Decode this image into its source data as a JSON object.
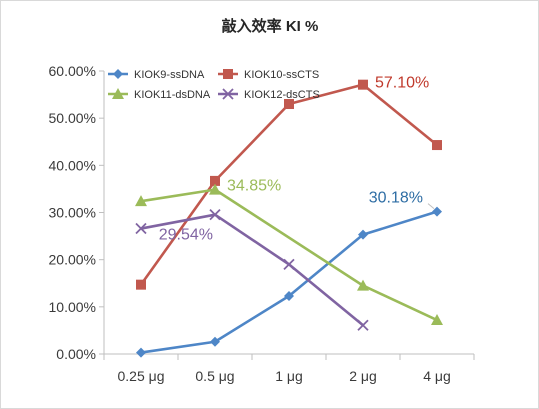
{
  "chart_data": {
    "type": "line",
    "title": "敲入效率 KI %",
    "xlabel": "",
    "ylabel": "",
    "categories": [
      "0.25 μg",
      "0.5 μg",
      "1 μg",
      "2 μg",
      "4 μg"
    ],
    "y_ticks": [
      "0.00%",
      "10.00%",
      "20.00%",
      "30.00%",
      "40.00%",
      "50.00%",
      "60.00%"
    ],
    "ylim": [
      0,
      60
    ],
    "grid": false,
    "legend_position": "top",
    "series": [
      {
        "name": "KIOK9-ssDNA",
        "color": "#4e86c7",
        "marker": "diamond",
        "values": [
          0.3,
          2.6,
          12.3,
          25.3,
          30.18
        ]
      },
      {
        "name": "KIOK10-ssCTS",
        "color": "#c1584e",
        "marker": "square",
        "values": [
          14.7,
          36.7,
          53.0,
          57.1,
          44.3
        ]
      },
      {
        "name": "KIOK11-dsDNA",
        "color": "#9bbb59",
        "marker": "triangle",
        "values": [
          32.4,
          34.85,
          null,
          14.5,
          7.2
        ]
      },
      {
        "name": "KIOK12-dsCTS",
        "color": "#8064a2",
        "marker": "x",
        "values": [
          26.6,
          29.54,
          19.0,
          6.1,
          null
        ]
      }
    ],
    "annotations": [
      {
        "text": "57.10%",
        "series": 1,
        "index": 3,
        "color": "#c0392b"
      },
      {
        "text": "34.85%",
        "series": 2,
        "index": 1,
        "color": "#9bbb59"
      },
      {
        "text": "29.54%",
        "series": 3,
        "index": 1,
        "color": "#8064a2"
      },
      {
        "text": "30.18%",
        "series": 0,
        "index": 4,
        "color": "#2e6da4"
      }
    ]
  }
}
